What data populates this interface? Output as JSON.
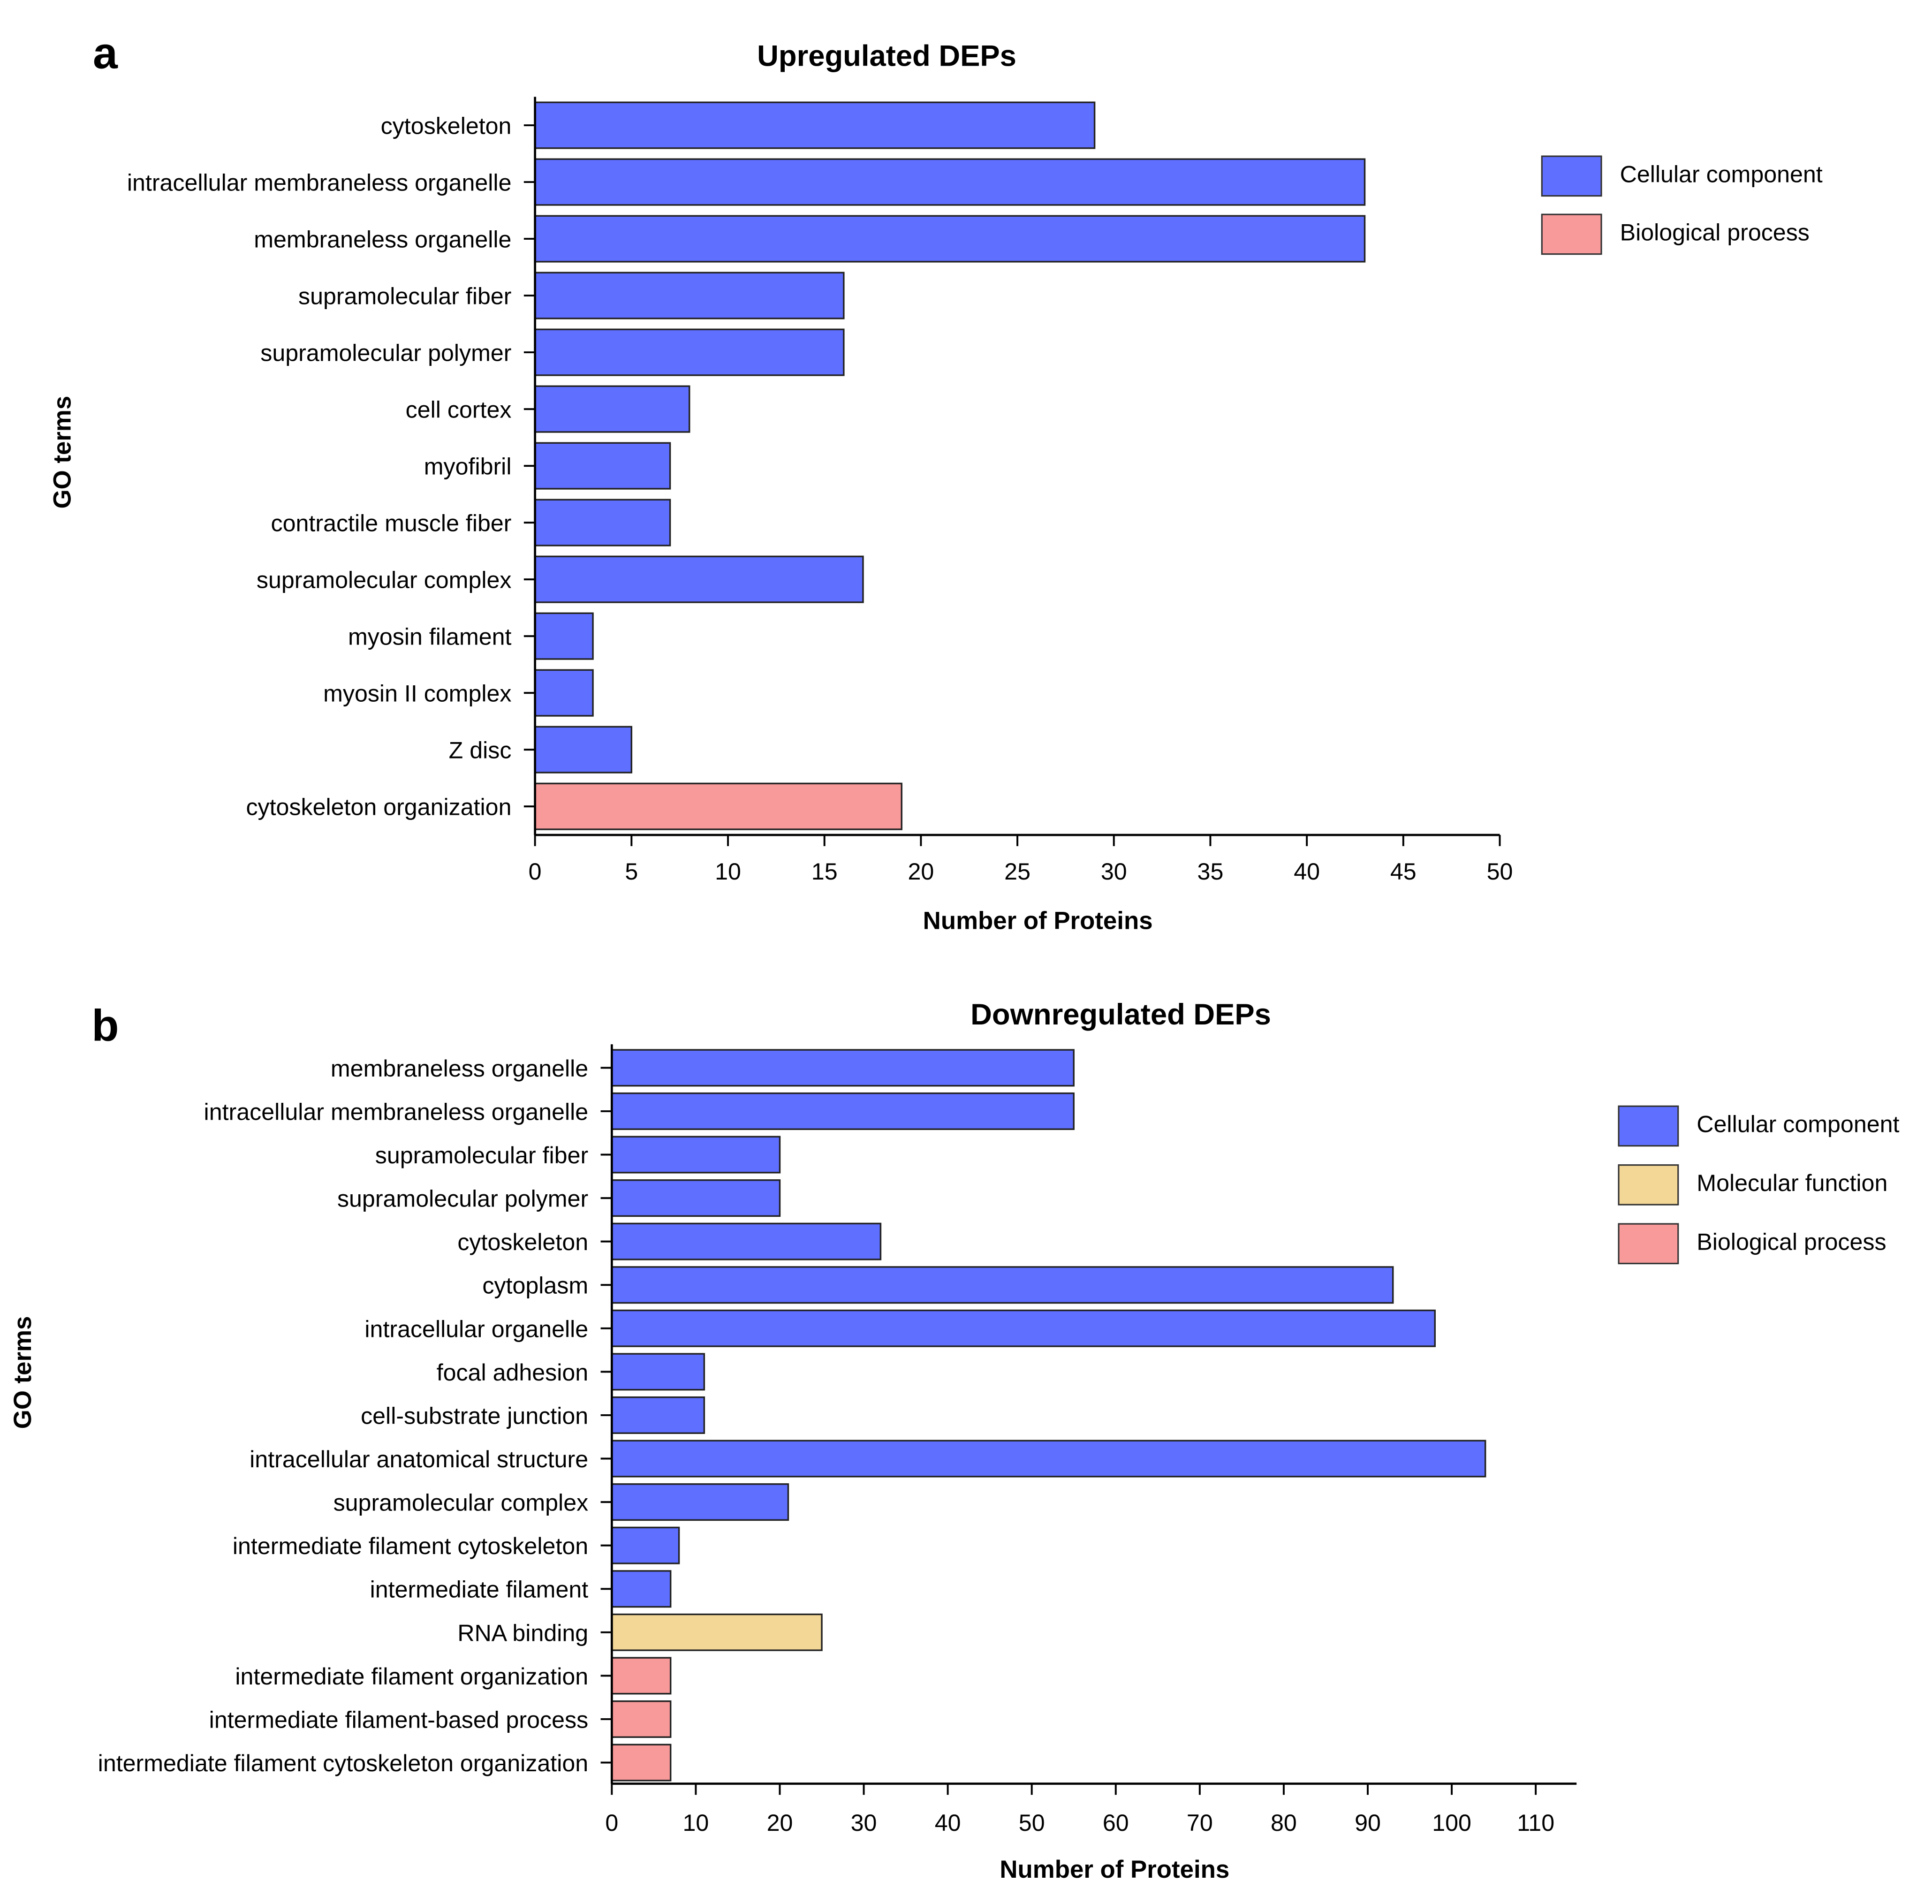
{
  "colors": {
    "Cellular component": "#5f6fff",
    "Molecular function": "#f3d796",
    "Biological process": "#f99a9a"
  },
  "chart_data": [
    {
      "type": "bar",
      "orientation": "horizontal",
      "panel_label": "a",
      "title": "Upregulated DEPs",
      "xlabel": "Number of Proteins",
      "ylabel": "GO terms",
      "xlim": [
        0,
        50
      ],
      "xticks": [
        0,
        5,
        10,
        15,
        20,
        25,
        30,
        35,
        40,
        45,
        50
      ],
      "legend": [
        "Cellular component",
        "Biological process"
      ],
      "legend_position": "top-right",
      "categories": [
        "cytoskeleton",
        "intracellular membraneless organelle",
        "membraneless organelle",
        "supramolecular fiber",
        "supramolecular polymer",
        "cell cortex",
        "myofibril",
        "contractile muscle fiber",
        "supramolecular complex",
        "myosin filament",
        "myosin II complex",
        "Z disc",
        "cytoskeleton organization"
      ],
      "values": [
        29,
        43,
        43,
        16,
        16,
        8,
        7,
        7,
        17,
        3,
        3,
        5,
        19
      ],
      "groups": [
        "Cellular component",
        "Cellular component",
        "Cellular component",
        "Cellular component",
        "Cellular component",
        "Cellular component",
        "Cellular component",
        "Cellular component",
        "Cellular component",
        "Cellular component",
        "Cellular component",
        "Cellular component",
        "Biological process"
      ]
    },
    {
      "type": "bar",
      "orientation": "horizontal",
      "panel_label": "b",
      "title": "Downregulated DEPs",
      "xlabel": "Number of Proteins",
      "ylabel": "GO terms",
      "xlim": [
        0,
        115
      ],
      "xticks": [
        0,
        10,
        20,
        30,
        40,
        50,
        60,
        70,
        80,
        90,
        100,
        110
      ],
      "legend": [
        "Cellular component",
        "Molecular function",
        "Biological process"
      ],
      "legend_position": "top-right",
      "categories": [
        "membraneless organelle",
        "intracellular membraneless organelle",
        "supramolecular fiber",
        "supramolecular polymer",
        "cytoskeleton",
        "cytoplasm",
        "intracellular organelle",
        "focal adhesion",
        "cell-substrate junction",
        "intracellular anatomical structure",
        "supramolecular complex",
        "intermediate filament cytoskeleton",
        "intermediate filament",
        "RNA binding",
        "intermediate filament organization",
        "intermediate filament-based process",
        "intermediate filament cytoskeleton organization"
      ],
      "values": [
        55,
        55,
        20,
        20,
        32,
        93,
        98,
        11,
        11,
        104,
        21,
        8,
        7,
        25,
        7,
        7,
        7
      ],
      "groups": [
        "Cellular component",
        "Cellular component",
        "Cellular component",
        "Cellular component",
        "Cellular component",
        "Cellular component",
        "Cellular component",
        "Cellular component",
        "Cellular component",
        "Cellular component",
        "Cellular component",
        "Cellular component",
        "Cellular component",
        "Molecular function",
        "Biological process",
        "Biological process",
        "Biological process"
      ]
    }
  ]
}
